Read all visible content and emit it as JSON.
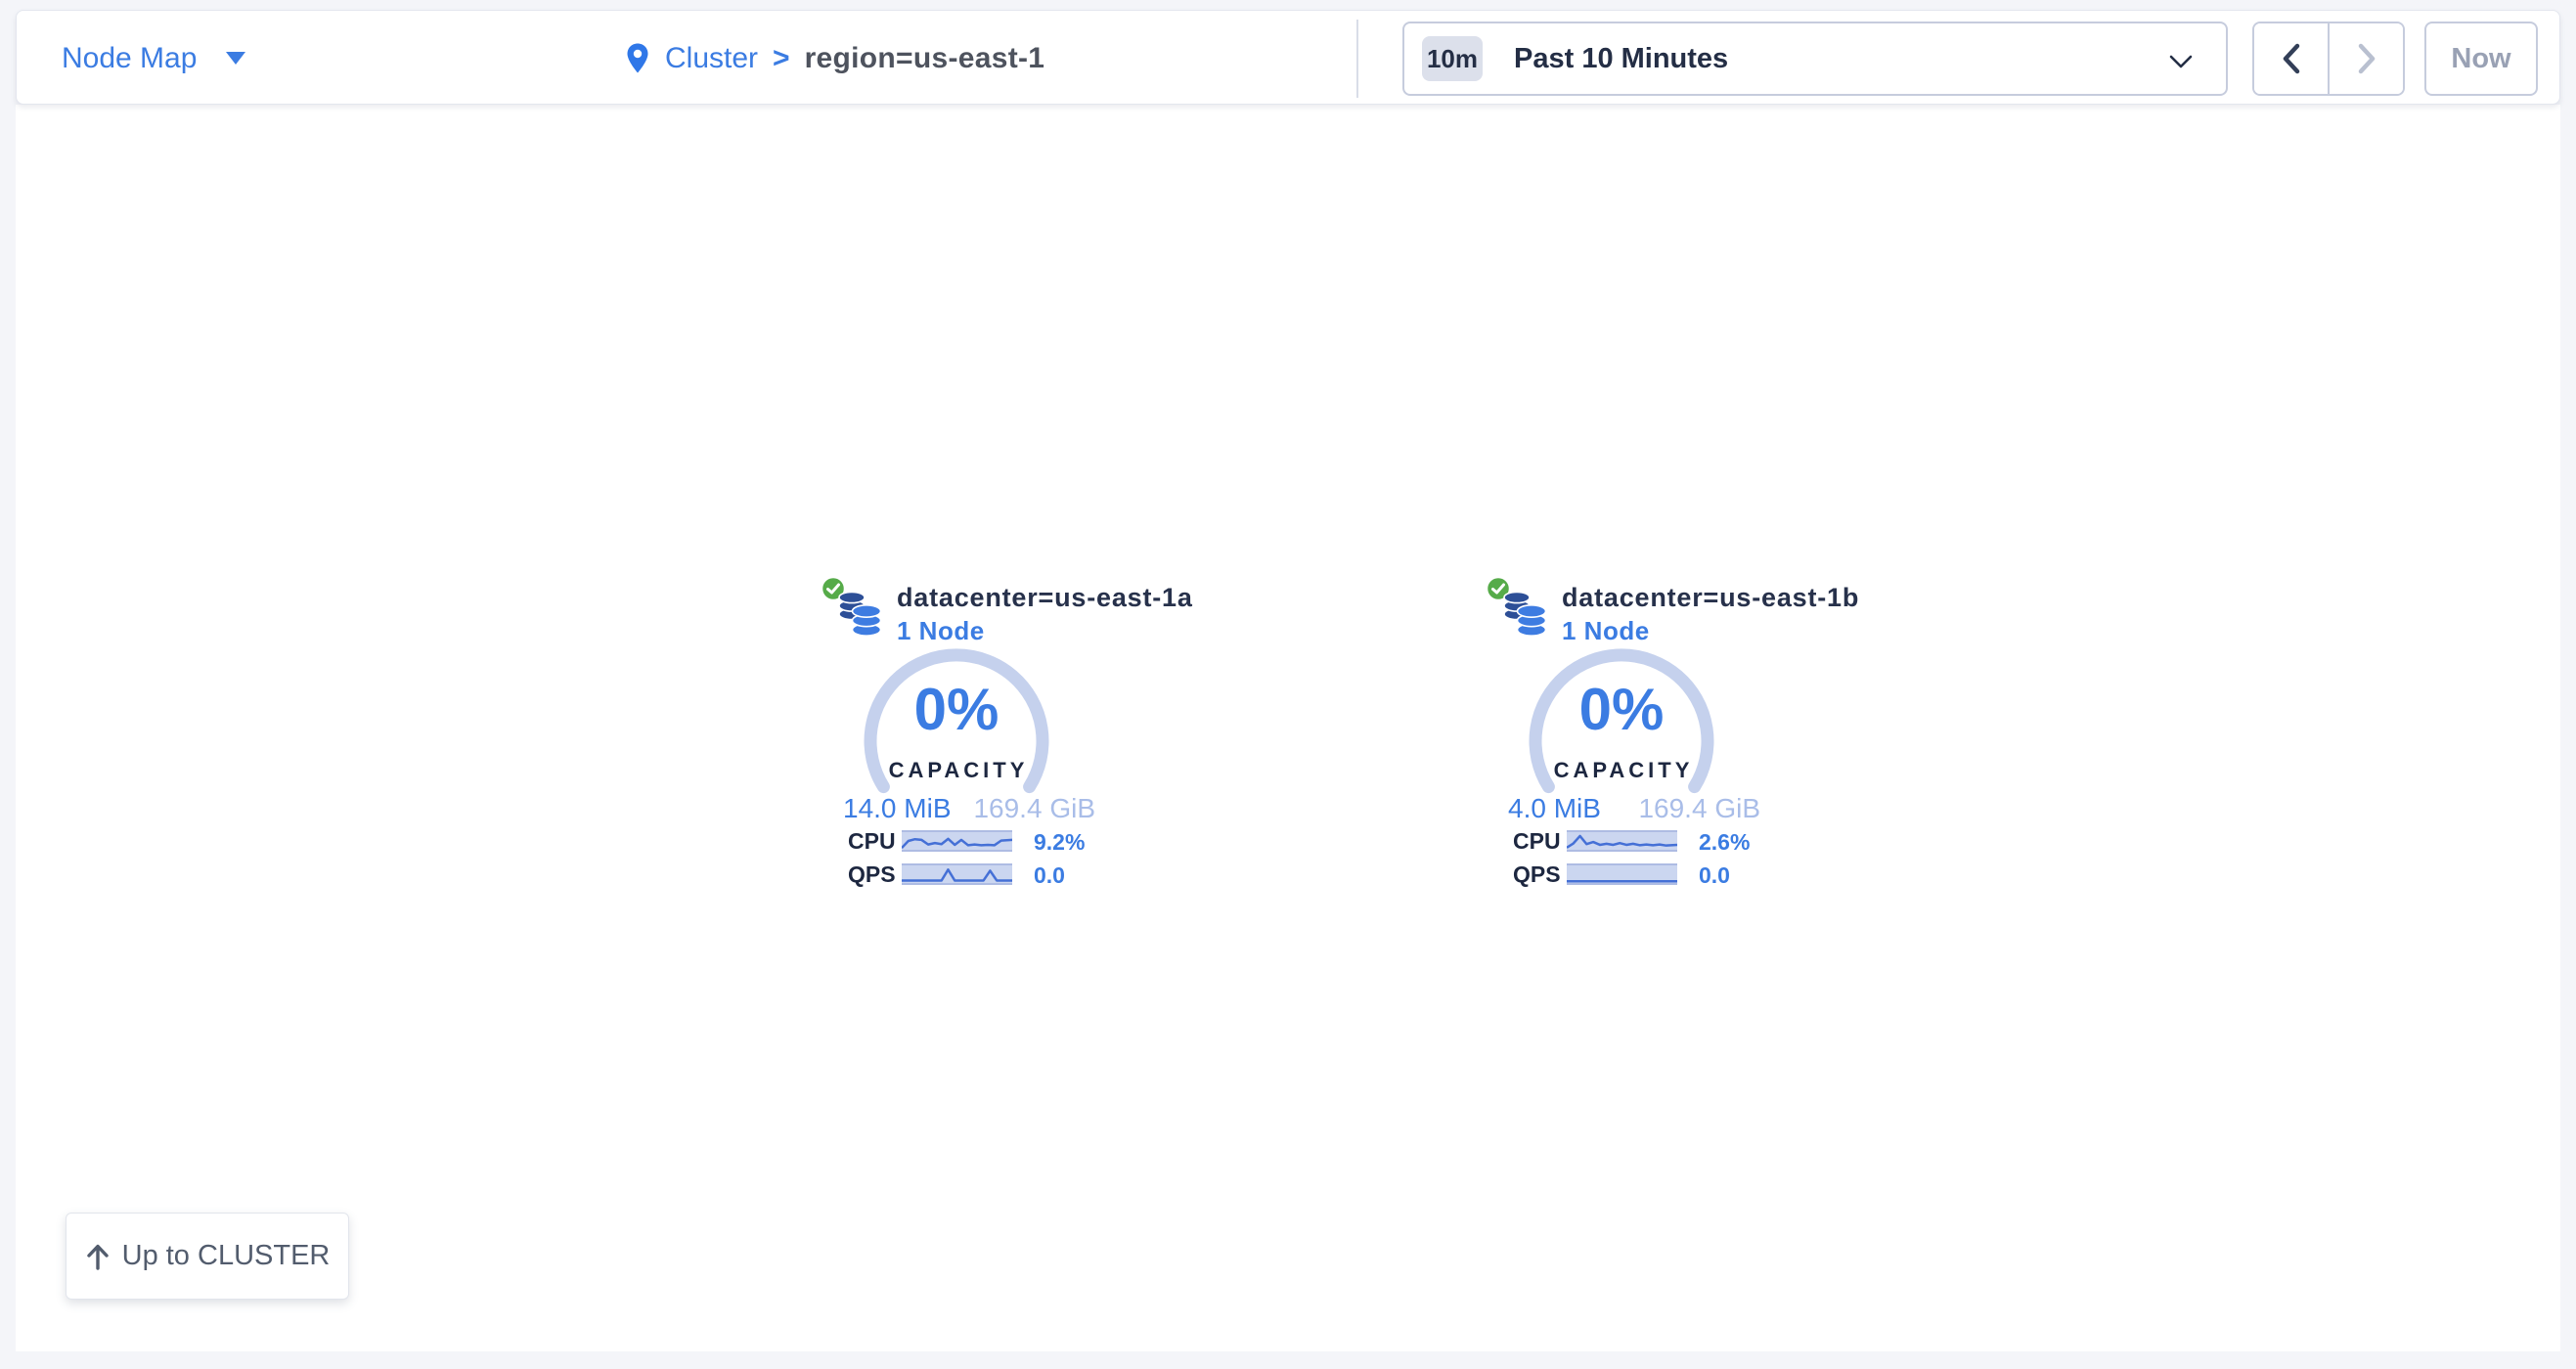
{
  "header": {
    "view_selector": {
      "label": "Node Map"
    },
    "breadcrumb": {
      "root": "Cluster",
      "separator": ">",
      "current": "region=us-east-1"
    },
    "time_selector": {
      "badge": "10m",
      "label": "Past 10 Minutes"
    },
    "now_button": "Now"
  },
  "localities": [
    {
      "title": "datacenter=us-east-1a",
      "subtitle": "1 Node",
      "capacity_pct": "0%",
      "capacity_label": "CAPACITY",
      "used": "14.0 MiB",
      "total": "169.4 GiB",
      "cpu_label": "CPU",
      "cpu_value": "9.2%",
      "qps_label": "QPS",
      "qps_value": "0.0",
      "cpu_spark": [
        [
          0,
          90
        ],
        [
          6,
          50
        ],
        [
          12,
          40
        ],
        [
          18,
          44
        ],
        [
          24,
          70
        ],
        [
          30,
          62
        ],
        [
          36,
          68
        ],
        [
          42,
          38
        ],
        [
          48,
          72
        ],
        [
          54,
          44
        ],
        [
          60,
          74
        ],
        [
          66,
          70
        ],
        [
          72,
          74
        ],
        [
          78,
          72
        ],
        [
          84,
          74
        ],
        [
          90,
          48
        ],
        [
          100,
          44
        ]
      ],
      "qps_spark": [
        [
          0,
          86
        ],
        [
          36,
          86
        ],
        [
          42,
          24
        ],
        [
          48,
          86
        ],
        [
          74,
          86
        ],
        [
          80,
          30
        ],
        [
          86,
          86
        ],
        [
          100,
          86
        ]
      ]
    },
    {
      "title": "datacenter=us-east-1b",
      "subtitle": "1 Node",
      "capacity_pct": "0%",
      "capacity_label": "CAPACITY",
      "used": "4.0 MiB",
      "total": "169.4 GiB",
      "cpu_label": "CPU",
      "cpu_value": "2.6%",
      "qps_label": "QPS",
      "qps_value": "0.0",
      "cpu_spark": [
        [
          0,
          88
        ],
        [
          6,
          64
        ],
        [
          12,
          22
        ],
        [
          18,
          68
        ],
        [
          24,
          56
        ],
        [
          30,
          72
        ],
        [
          36,
          66
        ],
        [
          42,
          72
        ],
        [
          48,
          62
        ],
        [
          54,
          72
        ],
        [
          60,
          66
        ],
        [
          66,
          74
        ],
        [
          72,
          70
        ],
        [
          78,
          74
        ],
        [
          84,
          70
        ],
        [
          90,
          76
        ],
        [
          100,
          72
        ]
      ],
      "qps_spark": [
        [
          0,
          90
        ],
        [
          100,
          90
        ]
      ]
    }
  ],
  "up_button": {
    "label": "Up to CLUSTER"
  },
  "icons": {
    "view_caret": "caret-down",
    "breadcrumb_pin": "location-pin",
    "time_chevron": "chevron-down",
    "pager_prev": "chevron-left",
    "pager_next": "chevron-right",
    "locality_health": "check-circle",
    "locality_icon": "database-stack",
    "up_arrow": "arrow-up"
  },
  "colors": {
    "page-bg": "#f4f5f9",
    "panel-bg": "#ffffff",
    "panel-border": "#e3e6ee",
    "blue": "#3b7ce2",
    "navy": "#242e45",
    "gray-text": "#99a1b4",
    "crumb-current": "#4e535e",
    "arc": "#c5d1ed",
    "light-blue-text": "#a9bde8",
    "spark-bg": "#cbd6f0",
    "spark-border": "#aebce3",
    "spark-line": "#4570d6",
    "green": "#56ab49",
    "control-border": "#c6ccdd",
    "badge-bg": "#dce0eb",
    "db-back": "#2d4f97",
    "db-front": "#3e7ce1",
    "up-btn-text": "#525c6d",
    "divider": "#d9dde8",
    "icon-dark": "#333f58",
    "icon-disabled": "#b9c0d0"
  }
}
